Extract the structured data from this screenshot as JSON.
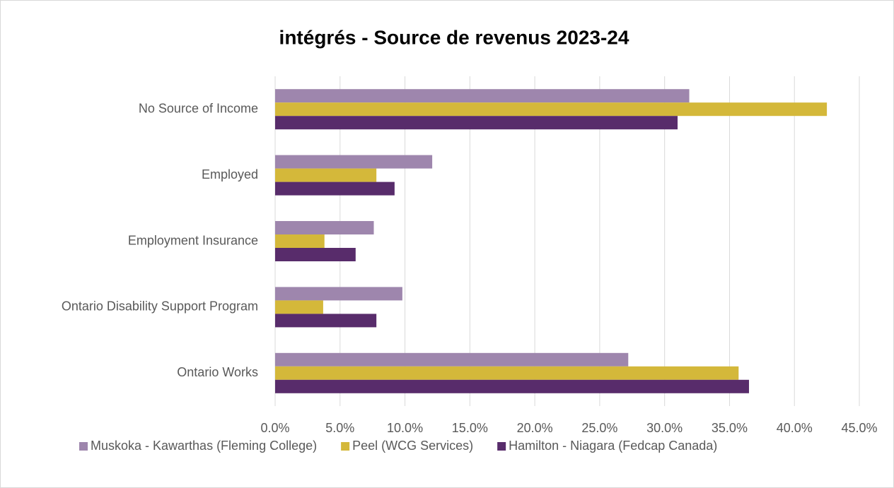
{
  "chart_data": {
    "type": "hbar",
    "title": "intégrés - Source de revenus 2023-24",
    "categories": [
      "No Source of Income",
      "Employed",
      "Employment Insurance",
      "Ontario Disability Support Program",
      "Ontario Works"
    ],
    "series": [
      {
        "name": "Muskoka - Kawarthas (Fleming College)",
        "color": "#9e86ad",
        "values": [
          31.9,
          12.1,
          7.6,
          9.8,
          27.2
        ]
      },
      {
        "name": "Peel (WCG Services)",
        "color": "#d4b83a",
        "values": [
          42.5,
          7.8,
          3.8,
          3.7,
          35.7
        ]
      },
      {
        "name": "Hamilton - Niagara (Fedcap Canada)",
        "color": "#582c6b",
        "values": [
          31.0,
          9.2,
          6.2,
          7.8,
          36.5
        ]
      }
    ],
    "xlim": [
      0,
      45
    ],
    "xticks": [
      {
        "value": 0,
        "label": "0.0%"
      },
      {
        "value": 5,
        "label": "5.0%"
      },
      {
        "value": 10,
        "label": "10.0%"
      },
      {
        "value": 15,
        "label": "15.0%"
      },
      {
        "value": 20,
        "label": "20.0%"
      },
      {
        "value": 25,
        "label": "25.0%"
      },
      {
        "value": 30,
        "label": "30.0%"
      },
      {
        "value": 35,
        "label": "35.0%"
      },
      {
        "value": 40,
        "label": "40.0%"
      },
      {
        "value": 45,
        "label": "45.0%"
      }
    ],
    "grid": true,
    "legend": "bottom"
  }
}
